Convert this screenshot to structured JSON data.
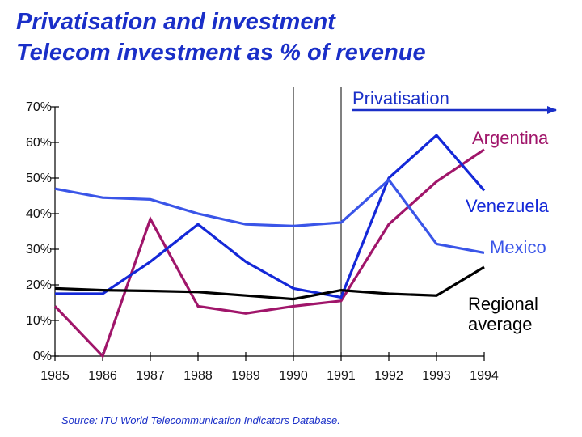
{
  "header": {
    "title": "Privatisation and investment",
    "subtitle": "Telecom investment as % of revenue"
  },
  "footer": {
    "source": "Source: ITU World Telecommunication Indicators Database."
  },
  "colors": {
    "title": "#1a2fc8",
    "argentina": "#a0156a",
    "venezuela": "#1428d8",
    "mexico": "#3a55e8",
    "regional_average": "#000000",
    "privatisation_arrow": "#1a2fc8"
  },
  "chart_data": {
    "type": "line",
    "title": "Telecom investment as % of revenue",
    "x": [
      1985,
      1986,
      1987,
      1988,
      1989,
      1990,
      1991,
      1992,
      1993,
      1994
    ],
    "x_tick_labels": [
      "1985",
      "1986",
      "1987",
      "1988",
      "1989",
      "1990",
      "1991",
      "1992",
      "1993",
      "1994"
    ],
    "y_tick_labels": [
      "0%",
      "10%",
      "20%",
      "30%",
      "40%",
      "50%",
      "60%",
      "70%"
    ],
    "ylim": [
      0,
      70
    ],
    "grid": false,
    "series": [
      {
        "name": "Argentina",
        "color_key": "argentina",
        "values": [
          14,
          0,
          38.5,
          14,
          12,
          14,
          15.5,
          37,
          49,
          58
        ]
      },
      {
        "name": "Venezuela",
        "color_key": "venezuela",
        "values": [
          17.5,
          17.5,
          26.5,
          37,
          26.5,
          19,
          16.5,
          50,
          62,
          46.5
        ]
      },
      {
        "name": "Mexico",
        "color_key": "mexico",
        "values": [
          47,
          44.5,
          44,
          40,
          37,
          36.5,
          37.5,
          49.5,
          31.5,
          29
        ]
      },
      {
        "name": "Regional average",
        "color_key": "regional_average",
        "values": [
          19,
          18.5,
          18.3,
          18,
          17,
          16,
          18.5,
          17.5,
          17,
          25
        ]
      }
    ],
    "annotations": {
      "privatisation": "Privatisation",
      "argentina": "Argentina",
      "venezuela": "Venezuela",
      "mexico": "Mexico",
      "regional_1": "Regional",
      "regional_2": "average"
    },
    "privatisation_markers": [
      1990,
      1991
    ]
  }
}
